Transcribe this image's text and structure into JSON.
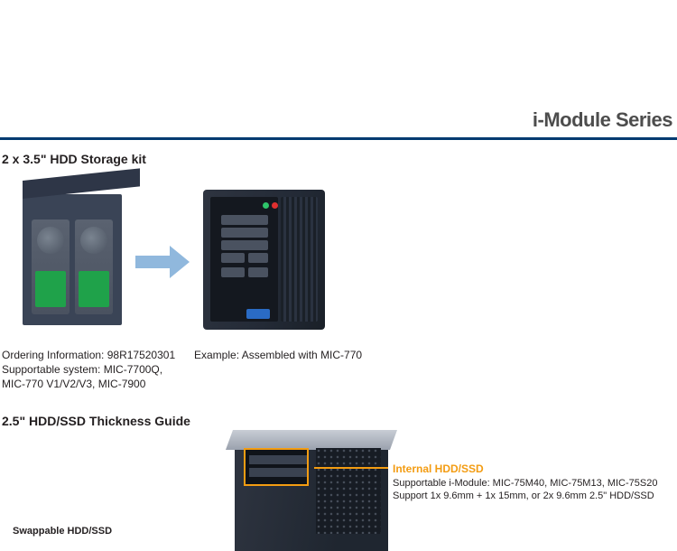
{
  "page": {
    "series_title": "i-Module Series",
    "divider_color": "#003a70"
  },
  "section1": {
    "title": "2 x 3.5\" HDD Storage kit",
    "ordering_info": "Ordering Information: 98R17520301",
    "supportable_line1": "Supportable system: MIC-7700Q,",
    "supportable_line2": "MIC-770 V1/V2/V3, MIC-7900",
    "example_caption": "Example: Assembled with MIC-770"
  },
  "section2": {
    "title": "2.5\" HDD/SSD Thickness Guide",
    "callout_title": "Internal HDD/SSD",
    "callout_line1": "Supportable i-Module: MIC-75M40, MIC-75M13, MIC-75S20",
    "callout_line2": "Support 1x 9.6mm + 1x 15mm, or 2x 9.6mm 2.5\" HDD/SSD",
    "swappable_label": "Swappable HDD/SSD"
  },
  "colors": {
    "accent_orange": "#f39c12",
    "arrow_blue": "#90b8dd",
    "hdd_label_green": "#1fa24a",
    "chassis_dark": "#2e3440",
    "text": "#231f20",
    "series_grey": "#4d4d4d"
  }
}
